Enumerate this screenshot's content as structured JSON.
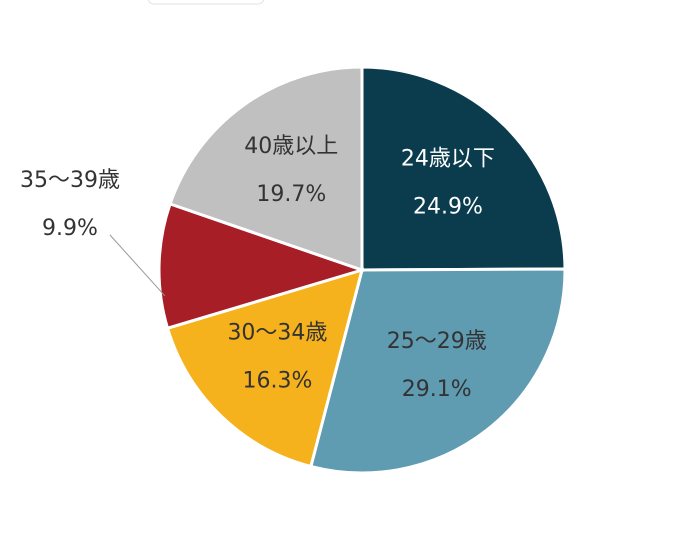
{
  "chart_data": {
    "type": "pie",
    "categories": [
      "24歳以下",
      "25〜29歳",
      "30〜34歳",
      "35〜39歳",
      "40歳以上"
    ],
    "values": [
      24.9,
      29.1,
      16.3,
      9.9,
      19.7
    ],
    "value_labels": [
      "24.9%",
      "29.1%",
      "16.3%",
      "9.9%",
      "19.7%"
    ],
    "colors": [
      "#0b3c4d",
      "#5f9bb1",
      "#f6b21d",
      "#a71e27",
      "#c0c0c0"
    ]
  }
}
